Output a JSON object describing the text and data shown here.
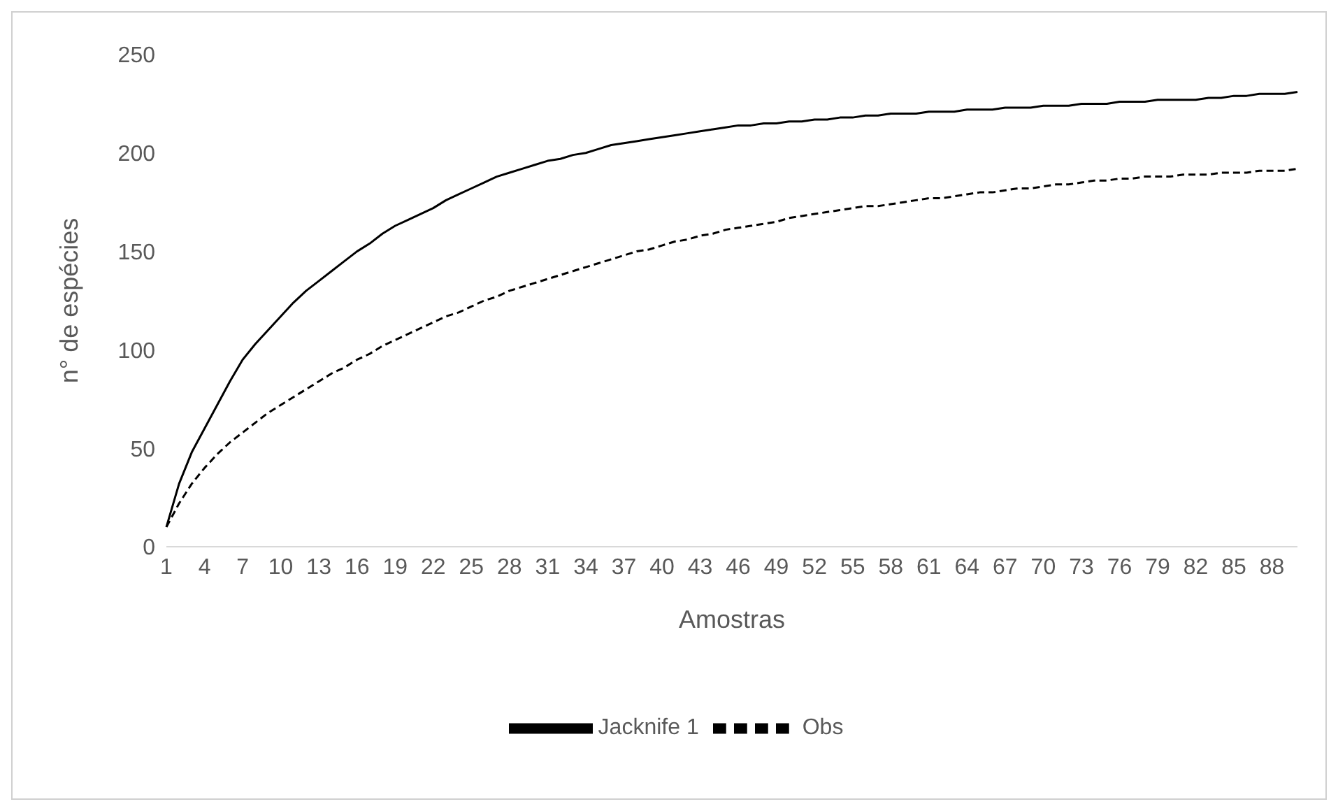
{
  "chart_data": {
    "type": "line",
    "xlabel": "Amostras",
    "ylabel": "n° de espécies",
    "categories": [
      "1",
      null,
      null,
      "4",
      null,
      null,
      "7",
      null,
      null,
      "10",
      null,
      null,
      "13",
      null,
      null,
      "16",
      null,
      null,
      "19",
      null,
      null,
      "22",
      null,
      null,
      "25",
      null,
      null,
      "28",
      null,
      null,
      "31",
      null,
      null,
      "34",
      null,
      null,
      "37",
      null,
      null,
      "40",
      null,
      null,
      "43",
      null,
      null,
      "46",
      null,
      null,
      "49",
      null,
      null,
      "52",
      null,
      null,
      "55",
      null,
      null,
      "58",
      null,
      null,
      "61",
      null,
      null,
      "64",
      null,
      null,
      "67",
      null,
      null,
      "70",
      null,
      null,
      "73",
      null,
      null,
      "76",
      null,
      null,
      "79",
      null,
      null,
      "82",
      null,
      null,
      "85",
      null,
      null,
      "88",
      null,
      null
    ],
    "series": [
      {
        "name": "Obs",
        "color": "#000000",
        "line_style": "dashed",
        "values": [
          10,
          22,
          32,
          40,
          47,
          53,
          58,
          63,
          68,
          72,
          76,
          80,
          84,
          88,
          91,
          95,
          98,
          102,
          105,
          108,
          111,
          114,
          117,
          119,
          122,
          125,
          127,
          130,
          132,
          134,
          136,
          138,
          140,
          142,
          144,
          146,
          148,
          150,
          151,
          153,
          155,
          156,
          158,
          159,
          161,
          162,
          163,
          164,
          165,
          167,
          168,
          169,
          170,
          171,
          172,
          173,
          173,
          174,
          175,
          176,
          177,
          177,
          178,
          179,
          180,
          180,
          181,
          182,
          182,
          183,
          184,
          184,
          185,
          186,
          186,
          187,
          187,
          188,
          188,
          188,
          189,
          189,
          189,
          190,
          190,
          190,
          191,
          191,
          191,
          192
        ]
      },
      {
        "name": "Jacknife 1",
        "color": "#000000",
        "line_style": "solid",
        "values": [
          10,
          32,
          48,
          60,
          72,
          84,
          95,
          103,
          110,
          117,
          124,
          130,
          135,
          140,
          145,
          150,
          154,
          159,
          163,
          166,
          169,
          172,
          176,
          179,
          182,
          185,
          188,
          190,
          192,
          194,
          196,
          197,
          199,
          200,
          202,
          204,
          205,
          206,
          207,
          208,
          209,
          210,
          211,
          212,
          213,
          214,
          214,
          215,
          215,
          216,
          216,
          217,
          217,
          218,
          218,
          219,
          219,
          220,
          220,
          220,
          221,
          221,
          221,
          222,
          222,
          222,
          223,
          223,
          223,
          224,
          224,
          224,
          225,
          225,
          225,
          226,
          226,
          226,
          227,
          227,
          227,
          227,
          228,
          228,
          229,
          229,
          230,
          230,
          230,
          231
        ]
      }
    ],
    "ylim": [
      0,
      250
    ],
    "yticks": [
      0,
      50,
      100,
      150,
      200,
      250
    ],
    "grid": false,
    "legend": "bottom",
    "marker": "none"
  }
}
